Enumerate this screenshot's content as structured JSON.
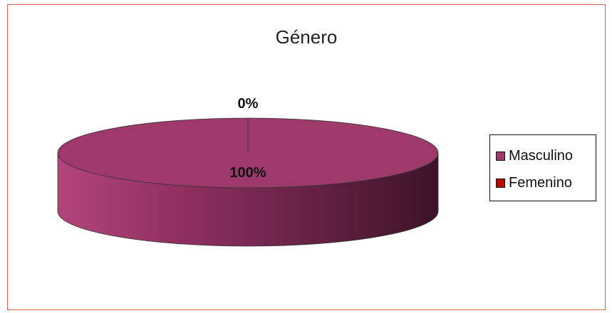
{
  "chart_data": {
    "type": "pie",
    "title": "Género",
    "categories": [
      "Masculino",
      "Femenino"
    ],
    "values": [
      100,
      0
    ],
    "data_labels": [
      "100%",
      "0%"
    ],
    "colors": [
      "#9e3a6b",
      "#c00000"
    ],
    "legend_position": "right",
    "three_d": true
  }
}
